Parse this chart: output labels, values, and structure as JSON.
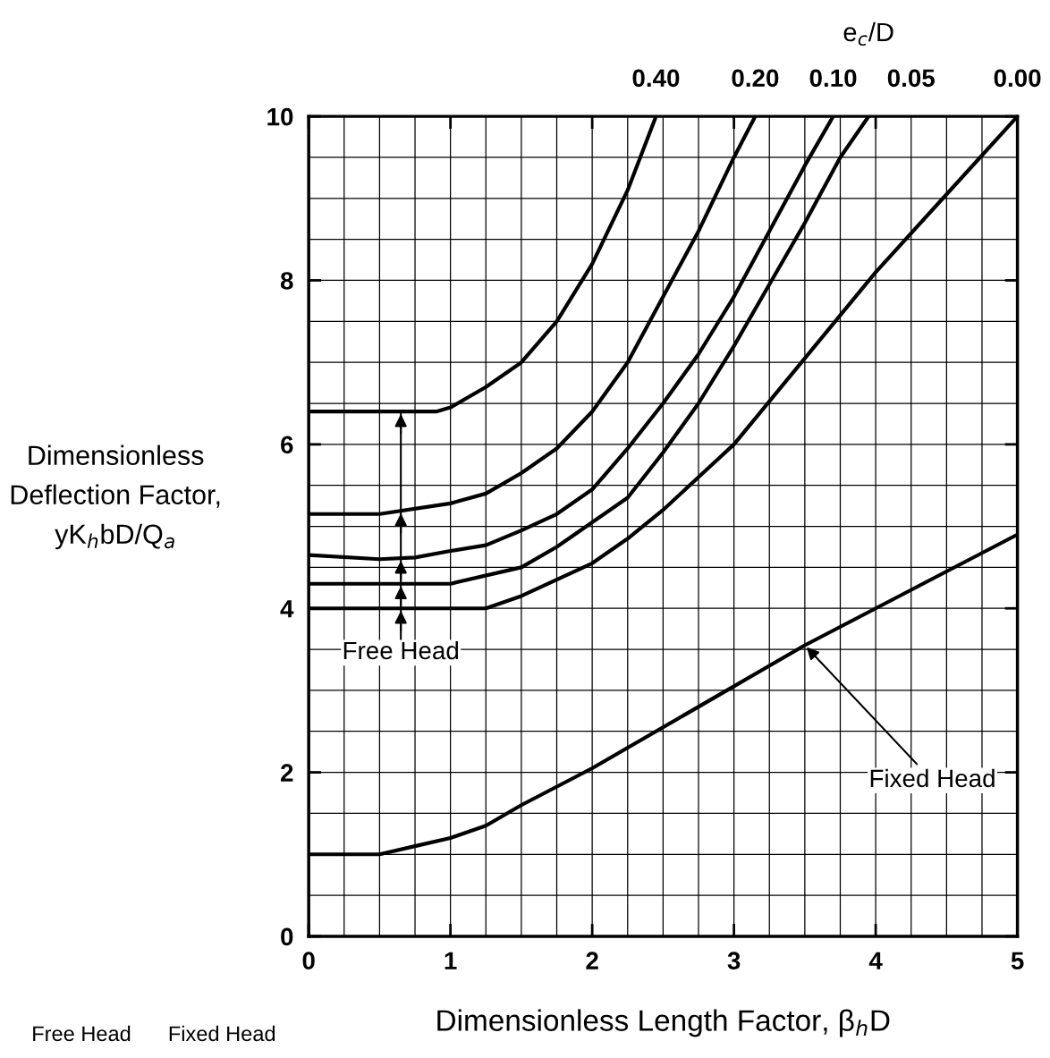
{
  "chart_data": {
    "type": "line",
    "xlabel": "Dimensionless Length Factor, β$_{h}$D",
    "ylabel": "Dimensionless\nDeflection Factor,\nyK$_{h}$bD/Q$_{a}$",
    "legend_title": "e$_{c}$/D",
    "xlim": [
      0,
      5
    ],
    "ylim": [
      0,
      10
    ],
    "xticks": [
      0,
      1,
      2,
      3,
      4,
      5
    ],
    "yticks": [
      0,
      2,
      4,
      6,
      8,
      10
    ],
    "grid": true,
    "legend": false,
    "line_style": "solid",
    "series": [
      {
        "name": "0.40",
        "color": "#000000",
        "x": [
          0,
          0.9,
          1,
          1.25,
          1.5,
          1.75,
          2,
          2.25,
          2.45
        ],
        "values": [
          6.4,
          6.4,
          6.45,
          6.7,
          7.0,
          7.5,
          8.2,
          9.1,
          10
        ]
      },
      {
        "name": "0.20",
        "color": "#000000",
        "x": [
          0,
          0.5,
          1,
          1.25,
          1.5,
          1.75,
          2,
          2.25,
          2.5,
          2.75,
          3,
          3.15
        ],
        "values": [
          5.15,
          5.15,
          5.28,
          5.4,
          5.65,
          5.95,
          6.4,
          7.0,
          7.8,
          8.6,
          9.5,
          10
        ]
      },
      {
        "name": "0.10",
        "color": "#000000",
        "x": [
          0,
          0.5,
          0.75,
          1,
          1.25,
          1.5,
          1.75,
          2,
          2.25,
          2.5,
          2.75,
          3,
          3.25,
          3.5,
          3.7
        ],
        "values": [
          4.65,
          4.6,
          4.62,
          4.7,
          4.77,
          4.95,
          5.15,
          5.45,
          5.95,
          6.5,
          7.1,
          7.8,
          8.6,
          9.4,
          10
        ]
      },
      {
        "name": "0.05",
        "color": "#000000",
        "x": [
          0,
          1,
          1.5,
          1.75,
          2,
          2.25,
          2.5,
          2.75,
          3,
          3.25,
          3.5,
          3.75,
          3.95
        ],
        "values": [
          4.3,
          4.3,
          4.5,
          4.75,
          5.05,
          5.35,
          5.9,
          6.5,
          7.2,
          7.95,
          8.7,
          9.5,
          10
        ]
      },
      {
        "name": "0.00",
        "color": "#000000",
        "x": [
          0,
          1.25,
          1.5,
          1.75,
          2,
          2.25,
          2.5,
          2.75,
          3,
          3.5,
          4,
          4.5,
          5
        ],
        "values": [
          4.0,
          4.0,
          4.15,
          4.35,
          4.55,
          4.85,
          5.2,
          5.6,
          6.0,
          7.05,
          8.1,
          9.05,
          10
        ]
      },
      {
        "color": "#000000",
        "x": [
          0,
          0.5,
          0.75,
          1,
          1.25,
          1.5,
          2,
          3,
          3.5,
          4,
          5
        ],
        "values": [
          1.0,
          1.0,
          1.1,
          1.2,
          1.35,
          1.6,
          2.05,
          3.05,
          3.55,
          4.0,
          4.9
        ]
      }
    ],
    "annotations": [
      {
        "text": "Free Head",
        "x": 0.65,
        "y": 6.4
      },
      {
        "text": "Fixed Head",
        "x": 3.5,
        "y": 3.55
      },
      "Free Head",
      "Fixed Head"
    ]
  }
}
